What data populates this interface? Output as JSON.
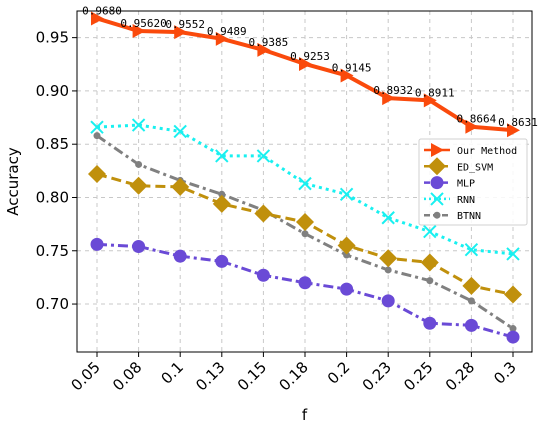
{
  "chart_data": {
    "type": "line",
    "xlabel": "f",
    "ylabel": "Accuracy",
    "categories": [
      "0.05",
      "0.08",
      "0.1",
      "0.13",
      "0.15",
      "0.18",
      "0.2",
      "0.23",
      "0.25",
      "0.28",
      "0.3"
    ],
    "ylim": [
      0.655,
      0.975
    ],
    "yticks": [
      0.7,
      0.75,
      0.8,
      0.85,
      0.9,
      0.95
    ],
    "ytick_labels": [
      "0.70",
      "0.75",
      "0.80",
      "0.85",
      "0.90",
      "0.95"
    ],
    "grid": "both, dashed",
    "legend_position": "right-middle",
    "series": [
      {
        "name": "Our Method",
        "color": "#fa4a0c",
        "line_style": "solid",
        "marker": "triangle-right",
        "values": [
          0.968,
          0.9562,
          0.9552,
          0.9489,
          0.9385,
          0.9253,
          0.9145,
          0.8932,
          0.8911,
          0.8664,
          0.8631
        ],
        "data_labels": [
          "0.9680",
          "0.95620",
          "0.9552",
          "0.9489",
          "0.9385",
          "0.9253",
          "0.9145",
          "0.8932",
          "0.8911",
          "0.8664",
          "0.8631"
        ]
      },
      {
        "name": "ED_SVM",
        "color": "#c0900c",
        "line_style": "dashed",
        "marker": "diamond",
        "values": [
          0.822,
          0.811,
          0.81,
          0.794,
          0.785,
          0.777,
          0.755,
          0.743,
          0.739,
          0.717,
          0.709
        ]
      },
      {
        "name": "MLP",
        "color": "#6a4ad6",
        "line_style": "dash-dot",
        "marker": "circle",
        "values": [
          0.756,
          0.754,
          0.745,
          0.74,
          0.727,
          0.72,
          0.714,
          0.703,
          0.682,
          0.68,
          0.669
        ]
      },
      {
        "name": "RNN",
        "color": "#19f0f0",
        "line_style": "dotted",
        "marker": "x",
        "values": [
          0.866,
          0.868,
          0.862,
          0.839,
          0.839,
          0.813,
          0.803,
          0.781,
          0.768,
          0.751,
          0.747
        ]
      },
      {
        "name": "BTNN",
        "color": "#808080",
        "line_style": "dash-dot",
        "marker": "small-circle",
        "values": [
          0.858,
          0.831,
          0.816,
          0.803,
          0.788,
          0.766,
          0.746,
          0.732,
          0.722,
          0.703,
          0.677
        ]
      }
    ]
  }
}
